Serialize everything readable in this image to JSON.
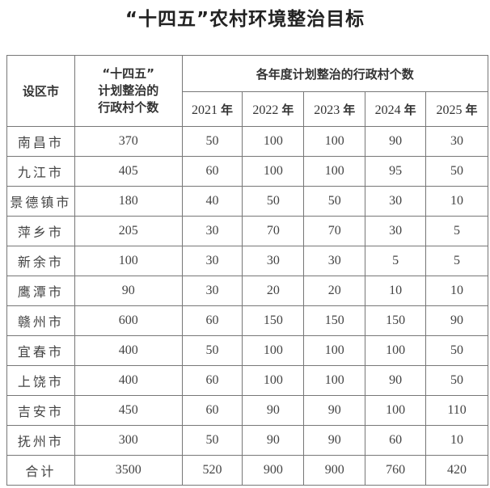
{
  "title": "“十四五”农村环境整治目标",
  "header": {
    "city": "设区市",
    "total_lines": [
      "“十四五”",
      "计划整治的",
      "行政村个数"
    ],
    "annual_group": "各年度计划整治的行政村个数",
    "years": [
      "2021",
      "2022",
      "2023",
      "2024",
      "2025"
    ],
    "year_suffix": "年"
  },
  "rows": [
    {
      "city": "南昌市",
      "total": "370",
      "years": [
        "50",
        "100",
        "100",
        "90",
        "30"
      ]
    },
    {
      "city": "九江市",
      "total": "405",
      "years": [
        "60",
        "100",
        "100",
        "95",
        "50"
      ]
    },
    {
      "city": "景德镇市",
      "total": "180",
      "years": [
        "40",
        "50",
        "50",
        "30",
        "10"
      ]
    },
    {
      "city": "萍乡市",
      "total": "205",
      "years": [
        "30",
        "70",
        "70",
        "30",
        "5"
      ]
    },
    {
      "city": "新余市",
      "total": "100",
      "years": [
        "30",
        "30",
        "30",
        "5",
        "5"
      ]
    },
    {
      "city": "鹰潭市",
      "total": "90",
      "years": [
        "30",
        "20",
        "20",
        "10",
        "10"
      ]
    },
    {
      "city": "赣州市",
      "total": "600",
      "years": [
        "60",
        "150",
        "150",
        "150",
        "90"
      ]
    },
    {
      "city": "宜春市",
      "total": "400",
      "years": [
        "50",
        "100",
        "100",
        "100",
        "50"
      ]
    },
    {
      "city": "上饶市",
      "total": "400",
      "years": [
        "60",
        "100",
        "100",
        "90",
        "50"
      ]
    },
    {
      "city": "吉安市",
      "total": "450",
      "years": [
        "60",
        "90",
        "90",
        "100",
        "110"
      ]
    },
    {
      "city": "抚州市",
      "total": "300",
      "years": [
        "50",
        "90",
        "90",
        "60",
        "10"
      ]
    },
    {
      "city": "合计",
      "total": "3500",
      "years": [
        "520",
        "900",
        "900",
        "760",
        "420"
      ]
    }
  ]
}
